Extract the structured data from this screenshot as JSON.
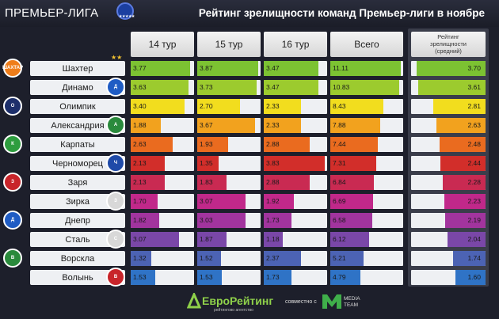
{
  "header": {
    "league": "ПРЕМЬЕР-ЛИГА",
    "title": "Рейтинг зрелищности команд Премьер-лиги в ноябре"
  },
  "columns": {
    "tur14": "14 тур",
    "tur15": "15 тур",
    "tur16": "16 тур",
    "total": "Всего",
    "avg_line1": "Рейтинг",
    "avg_line2": "зрелищности",
    "avg_line3": "(средний)"
  },
  "colors": {
    "rows": [
      "#7cc232",
      "#9ccb2e",
      "#f2dd1e",
      "#f2a21e",
      "#ea6b1f",
      "#d22e2a",
      "#c92a52",
      "#c1288a",
      "#a2349e",
      "#7a47a8",
      "#4c63b4",
      "#2f73c6"
    ]
  },
  "chart_data": {
    "type": "table",
    "title": "Рейтинг зрелищности команд Премьер-лиги в ноябре",
    "teams": [
      "Шахтер",
      "Динамо",
      "Олимпик",
      "Александрия",
      "Карпаты",
      "Черноморец",
      "Заря",
      "Зирка",
      "Днепр",
      "Сталь",
      "Ворскла",
      "Волынь"
    ],
    "series": [
      {
        "name": "14 тур",
        "values": [
          "3.77",
          "3.63",
          "3.40",
          "1.88",
          "2.63",
          "2.13",
          "2.13",
          "1.70",
          "1.82",
          "3.07",
          "1.32",
          "1.53"
        ]
      },
      {
        "name": "15 тур",
        "values": [
          "3.87",
          "3.73",
          "2.70",
          "3.67",
          "1.93",
          "1.35",
          "1.83",
          "3.07",
          "3.03",
          "1.87",
          "1.52",
          "1.53"
        ]
      },
      {
        "name": "16 тур",
        "values": [
          "3.47",
          "3.47",
          "2.33",
          "2.33",
          "2.88",
          "3.83",
          "2.88",
          "1.92",
          "1.73",
          "1.18",
          "2.37",
          "1.73"
        ]
      },
      {
        "name": "Всего",
        "values": [
          "11.11",
          "10.83",
          "8.43",
          "7.88",
          "7.44",
          "7.31",
          "6.84",
          "6.69",
          "6.58",
          "6.12",
          "5.21",
          "4.79"
        ]
      },
      {
        "name": "Рейтинг зрелищности (средний)",
        "values": [
          "3.70",
          "3.61",
          "2.81",
          "2.63",
          "2.48",
          "2.44",
          "2.28",
          "2.23",
          "2.19",
          "2.04",
          "1.74",
          "1.60"
        ]
      }
    ]
  },
  "footer": {
    "brand": "ЕвроРейтинг",
    "brand_sub": "рейтингово агентство",
    "together": "совместно с",
    "partner_line1": "MEDIA",
    "partner_line2": "TEAM"
  },
  "logos": [
    "ШАХТАР",
    "Д",
    "О",
    "А",
    "К",
    "Ч",
    "З",
    "З",
    "Д",
    "С",
    "В",
    "В"
  ],
  "badge": "★★"
}
